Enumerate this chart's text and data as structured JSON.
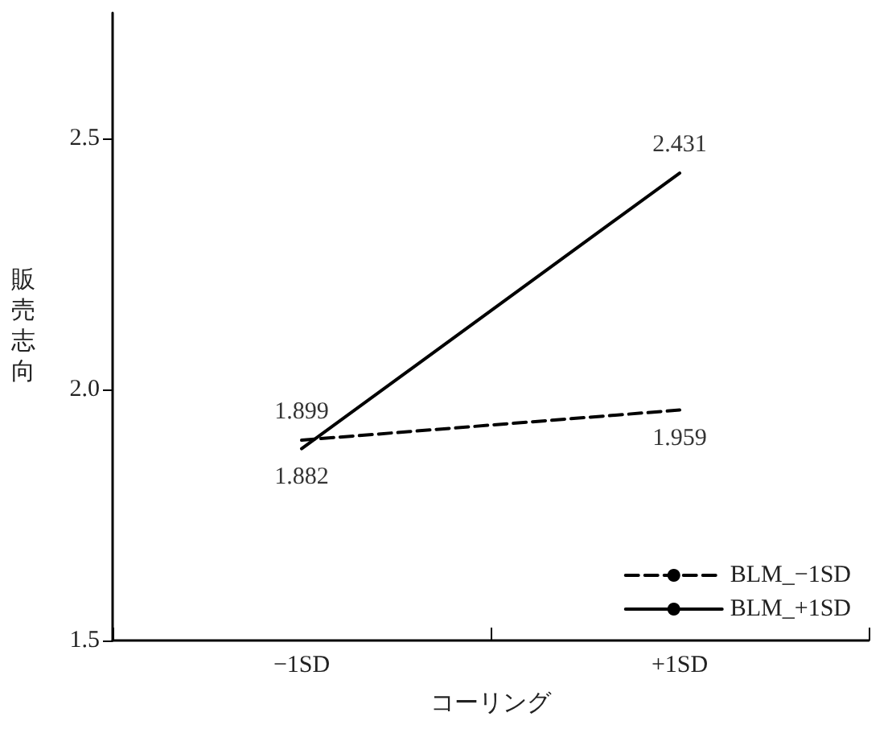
{
  "chart_data": {
    "type": "line",
    "xlabel": "コーリング",
    "ylabel": "販売志向",
    "categories": [
      "−1SD",
      "+1SD"
    ],
    "series": [
      {
        "name": "BLM_−1SD",
        "color": "#000000",
        "line_style": "dashed",
        "values": [
          1.899,
          1.959
        ],
        "value_labels": [
          "1.899",
          "1.959"
        ]
      },
      {
        "name": "BLM_+1SD",
        "color": "#000000",
        "line_style": "solid",
        "values": [
          1.882,
          2.431
        ],
        "value_labels": [
          "1.882",
          "2.431"
        ]
      }
    ],
    "ylim": [
      1.5,
      2.75
    ],
    "yticks": [
      {
        "value": 1.5,
        "label": "1.5"
      },
      {
        "value": 2,
        "label": "2.0"
      },
      {
        "value": 2.5,
        "label": "2.5"
      }
    ],
    "grid": false,
    "legend": "bottom right",
    "marker": "none"
  }
}
